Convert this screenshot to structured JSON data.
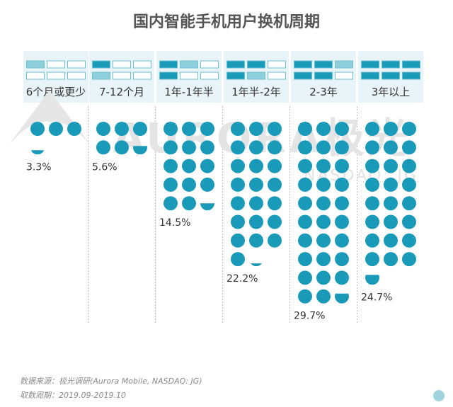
{
  "chart_data": {
    "type": "bar",
    "title": "国内智能手机用户换机周期",
    "categories": [
      "6个月或更少",
      "7-12个月",
      "1年-1年半",
      "1年半-2年",
      "2-3年",
      "3年以上"
    ],
    "values": [
      3.3,
      5.6,
      14.5,
      22.2,
      29.7,
      24.7
    ],
    "value_labels": [
      "3.3%",
      "5.6%",
      "14.5%",
      "22.2%",
      "29.7%",
      "24.7%"
    ],
    "unit": "%",
    "dot_value": 1,
    "dots_per_row": 3,
    "grid": false,
    "legend": "none"
  },
  "watermark": {
    "brand": "AURORA极光",
    "sub": "NASDAQ: JG"
  },
  "footer": {
    "source": "数据来源：极光调研(Aurora Mobile, NASDAQ: JG)",
    "period": "取数周期：2019.09-2019.10"
  },
  "colors": {
    "dot": "#1a9ab9",
    "header_bg": "#e9f4f8",
    "cell_outline": "#6cc1d3",
    "cell_fill": "#1a9ab9",
    "cell_light": "#8fcfdc",
    "title": "#555555",
    "label": "#333333",
    "divider": "#bdbdbd"
  }
}
